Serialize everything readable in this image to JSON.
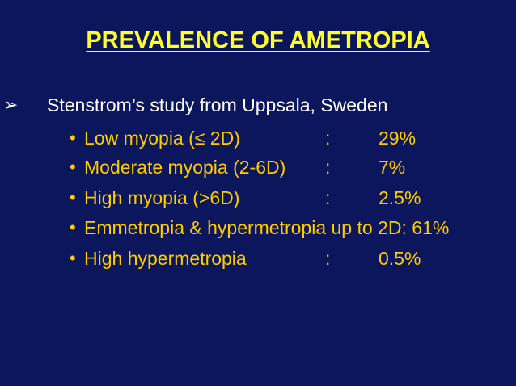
{
  "title": "PREVALENCE OF AMETROPIA",
  "bullet": "Stenstrom’s study from Uppsala, Sweden",
  "items": [
    {
      "label": "Low myopia (≤ 2D)",
      "separator": ":",
      "value": "29%"
    },
    {
      "label": "Moderate myopia (2-6D)",
      "separator": ":",
      "value": "7%"
    },
    {
      "label": "High myopia (>6D)",
      "separator": ":",
      "value": "2.5%"
    },
    {
      "text": "Emmetropia & hypermetropia up to 2D: 61%"
    },
    {
      "label": "High hypermetropia",
      "separator": ":",
      "value": "0.5%"
    }
  ]
}
